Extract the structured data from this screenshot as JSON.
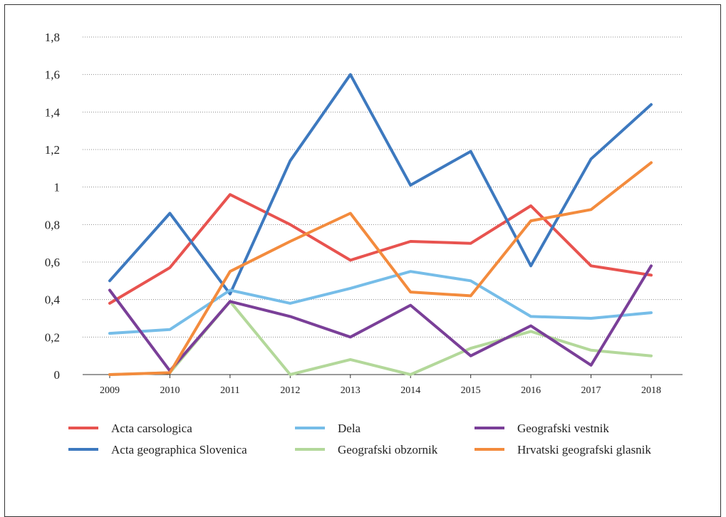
{
  "chart_data": {
    "type": "line",
    "title": "",
    "xlabel": "",
    "ylabel": "",
    "x": [
      "2009",
      "2010",
      "2011",
      "2012",
      "2013",
      "2014",
      "2015",
      "2016",
      "2017",
      "2018"
    ],
    "ylim": [
      0,
      1.8
    ],
    "yticks": [
      "0",
      "0,2",
      "0,4",
      "0,6",
      "0,8",
      "1",
      "1,2",
      "1,4",
      "1,6",
      "1,8"
    ],
    "grid": "horizontal dotted",
    "legend_position": "bottom",
    "series": [
      {
        "name": "Acta carsologica",
        "color": "#e8534f",
        "values": [
          0.38,
          0.57,
          0.96,
          0.8,
          0.61,
          0.71,
          0.7,
          0.9,
          0.58,
          0.53
        ]
      },
      {
        "name": "Acta geographica Slovenica",
        "color": "#3d79bf",
        "values": [
          0.5,
          0.86,
          0.43,
          1.14,
          1.6,
          1.01,
          1.19,
          0.58,
          1.15,
          1.44
        ]
      },
      {
        "name": "Dela",
        "color": "#76bde8",
        "values": [
          0.22,
          0.24,
          0.45,
          0.38,
          0.46,
          0.55,
          0.5,
          0.31,
          0.3,
          0.33
        ]
      },
      {
        "name": "Geografski obzornik",
        "color": "#b3d89a",
        "values": [
          0.0,
          0.01,
          0.39,
          0.0,
          0.08,
          0.0,
          0.14,
          0.23,
          0.13,
          0.1
        ]
      },
      {
        "name": "Geografski vestnik",
        "color": "#7a3f98",
        "values": [
          0.45,
          0.02,
          0.39,
          0.31,
          0.2,
          0.37,
          0.1,
          0.26,
          0.05,
          0.58
        ]
      },
      {
        "name": "Hrvatski geografski glasnik",
        "color": "#f38b3d",
        "values": [
          0.0,
          0.01,
          0.55,
          0.71,
          0.86,
          0.44,
          0.42,
          0.82,
          0.88,
          1.13
        ]
      }
    ]
  }
}
